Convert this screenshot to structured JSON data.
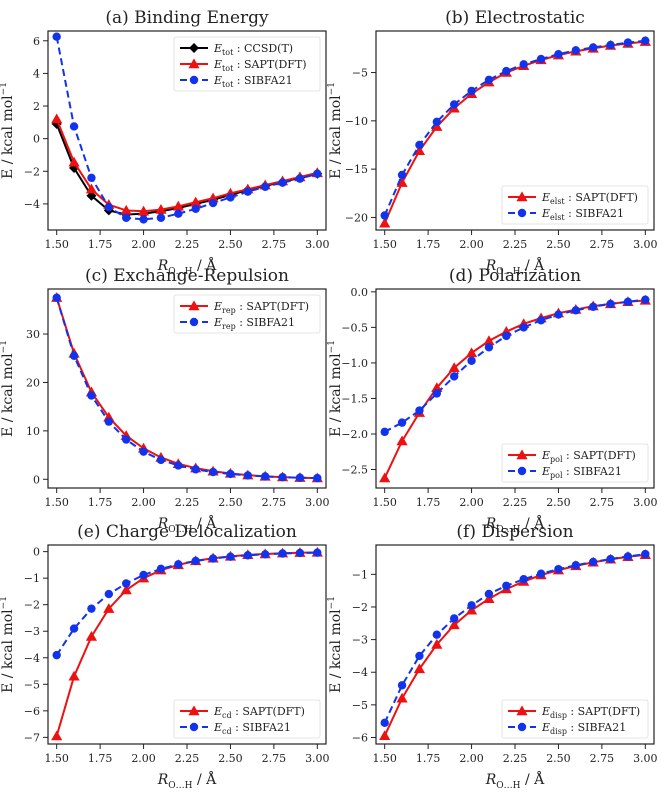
{
  "colors": {
    "ccsd": "#000000",
    "sapt": "#ee1111",
    "sibfa": "#1133ee"
  },
  "chart_data": [
    {
      "type": "line",
      "panel": "a",
      "title": "(a) Binding Energy",
      "xlabel_main": "R",
      "xlabel_sub": "O…H",
      "xlabel_unit": " / Å",
      "ylabel": "E / kcal mol",
      "ylabel_sup": "−1",
      "legend_position": "top-right",
      "xlim": [
        1.45,
        3.05
      ],
      "ylim": [
        -5.6,
        6.6
      ],
      "xticks": [
        "1.50",
        "1.75",
        "2.00",
        "2.25",
        "2.50",
        "2.75",
        "3.00"
      ],
      "yticks": [
        "6",
        "4",
        "2",
        "0",
        "−2",
        "−4"
      ],
      "x": [
        1.5,
        1.6,
        1.7,
        1.8,
        1.9,
        2.0,
        2.1,
        2.2,
        2.3,
        2.4,
        2.5,
        2.6,
        2.7,
        2.8,
        2.9,
        3.0
      ],
      "series": [
        {
          "key": "ccsd",
          "name_main": "E",
          "name_sub": "tot",
          "name_rest": " : CCSD(T)",
          "marker": "diamond",
          "dash": false,
          "values": [
            0.9,
            -1.8,
            -3.5,
            -4.4,
            -4.65,
            -4.6,
            -4.45,
            -4.25,
            -4.0,
            -3.75,
            -3.45,
            -3.15,
            -2.9,
            -2.65,
            -2.4,
            -2.15
          ]
        },
        {
          "key": "sapt",
          "name_main": "E",
          "name_sub": "tot",
          "name_rest": " : SAPT(DFT)",
          "marker": "triangle",
          "dash": false,
          "values": [
            1.2,
            -1.45,
            -3.1,
            -4.05,
            -4.4,
            -4.45,
            -4.35,
            -4.15,
            -3.9,
            -3.65,
            -3.35,
            -3.1,
            -2.85,
            -2.6,
            -2.35,
            -2.1
          ]
        },
        {
          "key": "sibfa",
          "name_main": "E",
          "name_sub": "tot",
          "name_rest": " : SIBFA21",
          "marker": "circle",
          "dash": true,
          "values": [
            6.25,
            0.75,
            -2.4,
            -4.2,
            -4.85,
            -4.95,
            -4.85,
            -4.6,
            -4.3,
            -3.95,
            -3.6,
            -3.25,
            -2.95,
            -2.7,
            -2.45,
            -2.15
          ]
        }
      ]
    },
    {
      "type": "line",
      "panel": "b",
      "title": "(b) Electrostatic",
      "xlabel_main": "R",
      "xlabel_sub": "O…H",
      "xlabel_unit": " / Å",
      "ylabel": "E / kcal mol",
      "ylabel_sup": "−1",
      "legend_position": "bottom-right",
      "xlim": [
        1.45,
        3.05
      ],
      "ylim": [
        -21.3,
        -0.7
      ],
      "xticks": [
        "1.50",
        "1.75",
        "2.00",
        "2.25",
        "2.50",
        "2.75",
        "3.00"
      ],
      "yticks": [
        "−5",
        "−10",
        "−15",
        "−20"
      ],
      "x": [
        1.5,
        1.6,
        1.7,
        1.8,
        1.9,
        2.0,
        2.1,
        2.2,
        2.3,
        2.4,
        2.5,
        2.6,
        2.7,
        2.8,
        2.9,
        3.0
      ],
      "series": [
        {
          "key": "sapt",
          "name_main": "E",
          "name_sub": "elst",
          "name_rest": " : SAPT(DFT)",
          "marker": "triangle",
          "dash": false,
          "values": [
            -20.6,
            -16.4,
            -13.1,
            -10.6,
            -8.7,
            -7.2,
            -6.0,
            -5.0,
            -4.3,
            -3.7,
            -3.2,
            -2.8,
            -2.5,
            -2.2,
            -2.0,
            -1.8
          ]
        },
        {
          "key": "sibfa",
          "name_main": "E",
          "name_sub": "elst",
          "name_rest": " : SIBFA21",
          "marker": "circle",
          "dash": true,
          "values": [
            -19.8,
            -15.6,
            -12.5,
            -10.1,
            -8.3,
            -6.9,
            -5.75,
            -4.85,
            -4.15,
            -3.6,
            -3.1,
            -2.7,
            -2.4,
            -2.15,
            -1.9,
            -1.7
          ]
        }
      ]
    },
    {
      "type": "line",
      "panel": "c",
      "title": "(c) Exchange-Repulsion",
      "xlabel_main": "R",
      "xlabel_sub": "O…H",
      "xlabel_unit": " / Å",
      "ylabel": "E / kcal mol",
      "ylabel_sup": "−1",
      "legend_position": "top-right",
      "xlim": [
        1.45,
        3.05
      ],
      "ylim": [
        -1.8,
        39.3
      ],
      "xticks": [
        "1.50",
        "1.75",
        "2.00",
        "2.25",
        "2.50",
        "2.75",
        "3.00"
      ],
      "yticks": [
        "30",
        "20",
        "10",
        "0"
      ],
      "x": [
        1.5,
        1.6,
        1.7,
        1.8,
        1.9,
        2.0,
        2.1,
        2.2,
        2.3,
        2.4,
        2.5,
        2.6,
        2.7,
        2.8,
        2.9,
        3.0
      ],
      "series": [
        {
          "key": "sapt",
          "name_main": "E",
          "name_sub": "rep",
          "name_rest": " : SAPT(DFT)",
          "marker": "triangle",
          "dash": false,
          "values": [
            37.5,
            26.0,
            18.0,
            12.8,
            9.0,
            6.4,
            4.5,
            3.2,
            2.3,
            1.65,
            1.2,
            0.85,
            0.6,
            0.45,
            0.32,
            0.25
          ]
        },
        {
          "key": "sibfa",
          "name_main": "E",
          "name_sub": "rep",
          "name_rest": " : SIBFA21",
          "marker": "circle",
          "dash": true,
          "values": [
            37.5,
            25.5,
            17.3,
            11.9,
            8.2,
            5.7,
            4.0,
            2.85,
            2.05,
            1.5,
            1.1,
            0.8,
            0.58,
            0.43,
            0.32,
            0.24
          ]
        }
      ]
    },
    {
      "type": "line",
      "panel": "d",
      "title": "(d) Polarization",
      "xlabel_main": "R",
      "xlabel_sub": "O…H",
      "xlabel_unit": " / Å",
      "ylabel": "E / kcal mol",
      "ylabel_sup": "−1",
      "legend_position": "bottom-right",
      "xlim": [
        1.45,
        3.05
      ],
      "ylim": [
        -2.76,
        0.04
      ],
      "xticks": [
        "1.50",
        "1.75",
        "2.00",
        "2.25",
        "2.50",
        "2.75",
        "3.00"
      ],
      "yticks": [
        "0.0",
        "−0.5",
        "−1.0",
        "−1.5",
        "−2.0",
        "−2.5"
      ],
      "x": [
        1.5,
        1.6,
        1.7,
        1.8,
        1.9,
        2.0,
        2.1,
        2.2,
        2.3,
        2.4,
        2.5,
        2.6,
        2.7,
        2.8,
        2.9,
        3.0
      ],
      "series": [
        {
          "key": "sapt",
          "name_main": "E",
          "name_sub": "pol",
          "name_rest": " : SAPT(DFT)",
          "marker": "triangle",
          "dash": false,
          "values": [
            -2.62,
            -2.1,
            -1.7,
            -1.35,
            -1.07,
            -0.86,
            -0.69,
            -0.56,
            -0.45,
            -0.37,
            -0.3,
            -0.25,
            -0.2,
            -0.17,
            -0.14,
            -0.12
          ]
        },
        {
          "key": "sibfa",
          "name_main": "E",
          "name_sub": "pol",
          "name_rest": " : SIBFA21",
          "marker": "circle",
          "dash": true,
          "values": [
            -1.97,
            -1.84,
            -1.67,
            -1.43,
            -1.19,
            -0.97,
            -0.78,
            -0.62,
            -0.5,
            -0.4,
            -0.32,
            -0.26,
            -0.21,
            -0.17,
            -0.14,
            -0.11
          ]
        }
      ]
    },
    {
      "type": "line",
      "panel": "e",
      "title": "(e) Charge Delocalization",
      "xlabel_main": "R",
      "xlabel_sub": "O…H",
      "xlabel_unit": " / Å",
      "ylabel": "E / kcal mol",
      "ylabel_sup": "−1",
      "legend_position": "bottom-right",
      "xlim": [
        1.45,
        3.05
      ],
      "ylim": [
        -7.25,
        0.25
      ],
      "xticks": [
        "1.50",
        "1.75",
        "2.00",
        "2.25",
        "2.50",
        "2.75",
        "3.00"
      ],
      "yticks": [
        "0",
        "−1",
        "−2",
        "−3",
        "−4",
        "−5",
        "−6",
        "−7"
      ],
      "x": [
        1.5,
        1.6,
        1.7,
        1.8,
        1.9,
        2.0,
        2.1,
        2.2,
        2.3,
        2.4,
        2.5,
        2.6,
        2.7,
        2.8,
        2.9,
        3.0
      ],
      "series": [
        {
          "key": "sapt",
          "name_main": "E",
          "name_sub": "cd",
          "name_rest": " : SAPT(DFT)",
          "marker": "triangle",
          "dash": false,
          "values": [
            -6.95,
            -4.7,
            -3.2,
            -2.15,
            -1.45,
            -1.0,
            -0.7,
            -0.5,
            -0.35,
            -0.25,
            -0.18,
            -0.12,
            -0.09,
            -0.06,
            -0.04,
            -0.03
          ]
        },
        {
          "key": "sibfa",
          "name_main": "E",
          "name_sub": "cd",
          "name_rest": " : SIBFA21",
          "marker": "circle",
          "dash": true,
          "values": [
            -3.9,
            -2.9,
            -2.15,
            -1.6,
            -1.2,
            -0.88,
            -0.65,
            -0.48,
            -0.35,
            -0.26,
            -0.19,
            -0.14,
            -0.1,
            -0.07,
            -0.05,
            -0.04
          ]
        }
      ]
    },
    {
      "type": "line",
      "panel": "f",
      "title": "(f) Dispersion",
      "xlabel_main": "R",
      "xlabel_sub": "O…H",
      "xlabel_unit": " / Å",
      "ylabel": "E / kcal mol",
      "ylabel_sup": "−1",
      "legend_position": "bottom-right",
      "xlim": [
        1.45,
        3.05
      ],
      "ylim": [
        -6.2,
        -0.1
      ],
      "xticks": [
        "1.50",
        "1.75",
        "2.00",
        "2.25",
        "2.50",
        "2.75",
        "3.00"
      ],
      "yticks": [
        "−1",
        "−2",
        "−3",
        "−4",
        "−5",
        "−6"
      ],
      "x": [
        1.5,
        1.6,
        1.7,
        1.8,
        1.9,
        2.0,
        2.1,
        2.2,
        2.3,
        2.4,
        2.5,
        2.6,
        2.7,
        2.8,
        2.9,
        3.0
      ],
      "series": [
        {
          "key": "sapt",
          "name_main": "E",
          "name_sub": "disp",
          "name_rest": " : SAPT(DFT)",
          "marker": "triangle",
          "dash": false,
          "values": [
            -5.95,
            -4.8,
            -3.9,
            -3.15,
            -2.55,
            -2.1,
            -1.75,
            -1.45,
            -1.22,
            -1.02,
            -0.87,
            -0.74,
            -0.63,
            -0.54,
            -0.46,
            -0.4
          ]
        },
        {
          "key": "sibfa",
          "name_main": "E",
          "name_sub": "disp",
          "name_rest": " : SIBFA21",
          "marker": "circle",
          "dash": true,
          "values": [
            -5.55,
            -4.4,
            -3.5,
            -2.85,
            -2.35,
            -1.95,
            -1.6,
            -1.35,
            -1.15,
            -0.98,
            -0.84,
            -0.72,
            -0.62,
            -0.53,
            -0.45,
            -0.38
          ]
        }
      ]
    }
  ]
}
